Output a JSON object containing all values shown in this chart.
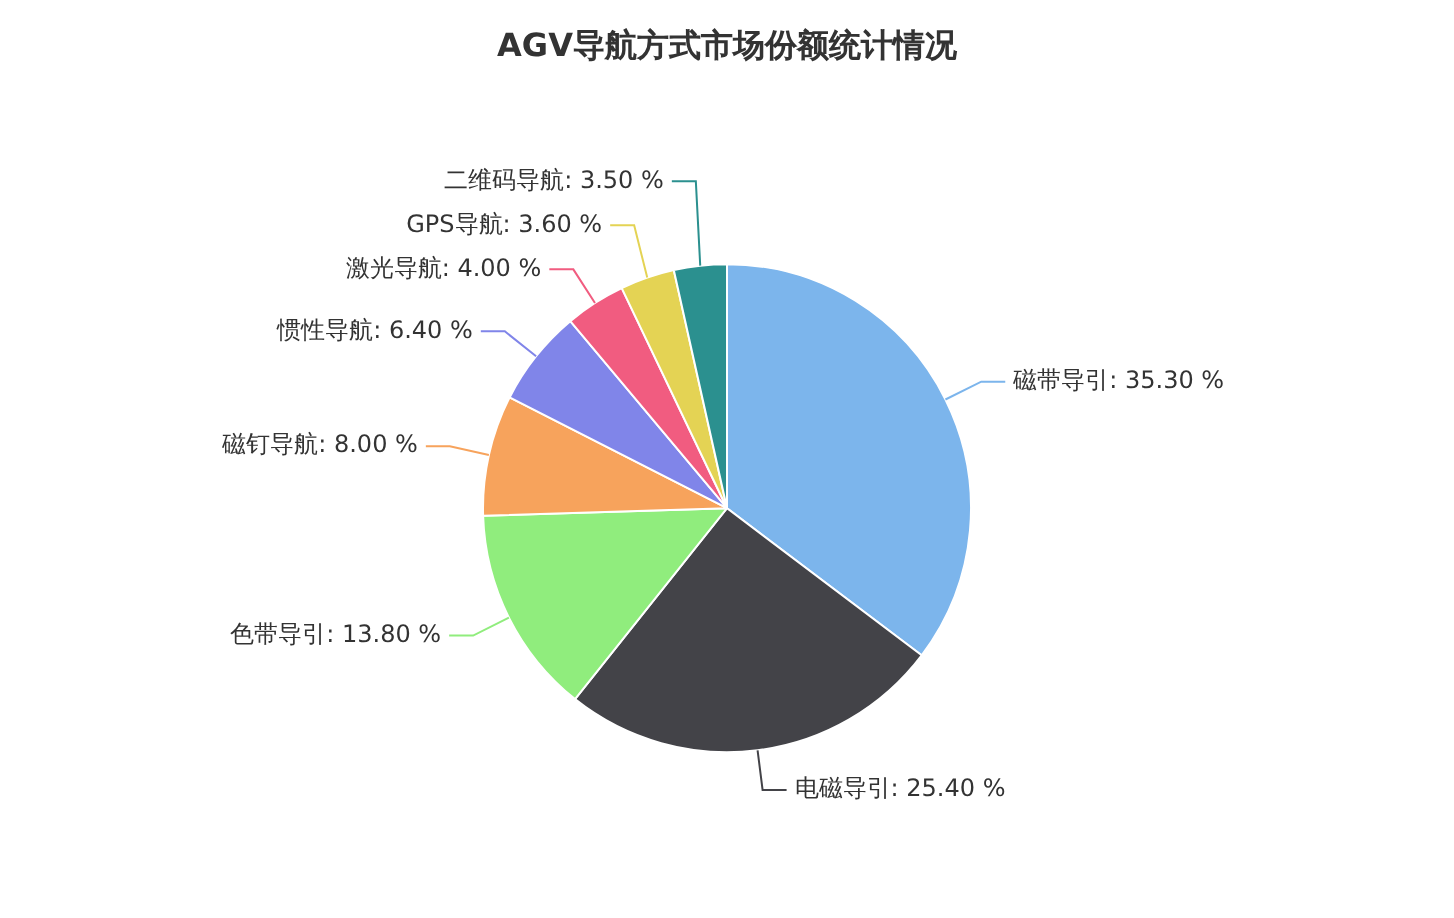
{
  "chart_data": {
    "type": "pie",
    "title": "AGV导航方式市场份额统计情况",
    "categories": [
      "磁带导引",
      "电磁导引",
      "色带导引",
      "磁钉导航",
      "惯性导航",
      "激光导航",
      "GPS导航",
      "二维码导航"
    ],
    "values": [
      35.3,
      25.4,
      13.8,
      8.0,
      6.4,
      4.0,
      3.6,
      3.5
    ],
    "value_labels": [
      "35.30 %",
      "25.40 %",
      "13.80 %",
      "8.00 %",
      "6.40 %",
      "4.00 %",
      "3.60 %",
      "3.50 %"
    ],
    "colors": [
      "#7cb5ec",
      "#434348",
      "#90ed7d",
      "#f7a35c",
      "#8085e9",
      "#f15c80",
      "#e4d354",
      "#2b908f"
    ],
    "legend": false
  }
}
